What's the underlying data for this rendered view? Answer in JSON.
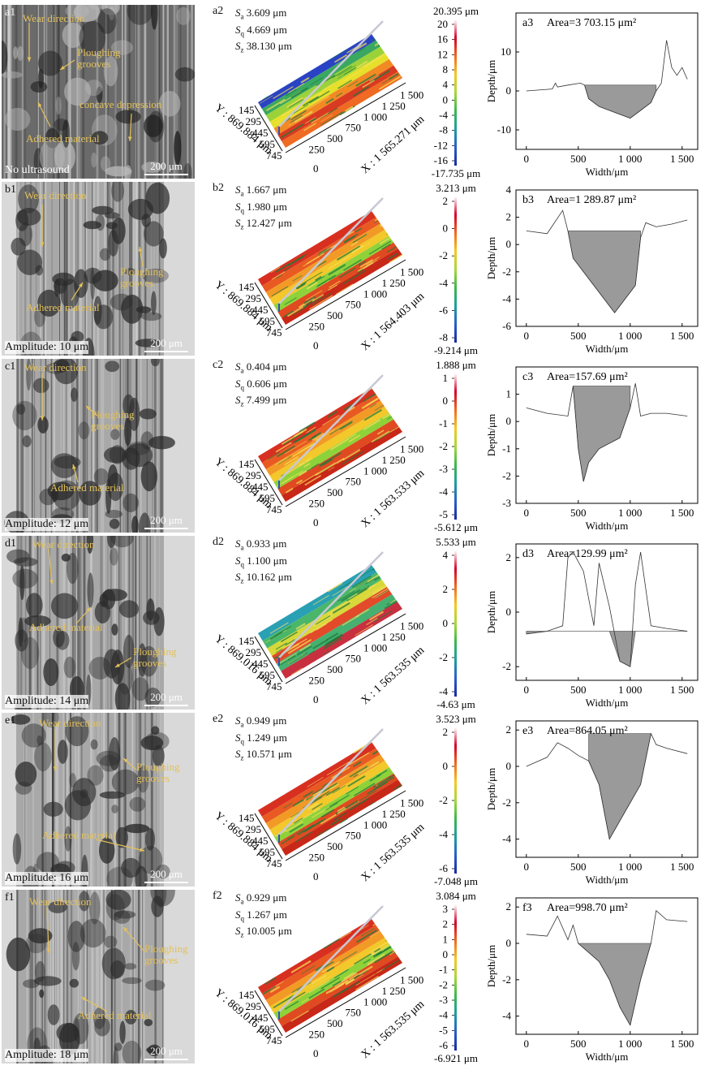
{
  "rows": [
    {
      "sem_label": "a1",
      "sem_caption": "No ultrasound",
      "scale": "200 μm",
      "annotations": {
        "wear": "Wear direction",
        "plough": "Ploughing\ngrooves",
        "adhered": "Adhered material",
        "concave": "concave depression"
      },
      "surf_label": "a2",
      "sa": "3.609 μm",
      "sq": "4.669 μm",
      "sz": "38.130 μm",
      "cmax": "20.395 μm",
      "cmin": "-17.735 μm",
      "cticks": [
        "20",
        "16",
        "12",
        "8",
        "4",
        "0",
        "-4",
        "-8",
        "-12",
        "-16"
      ],
      "xaxis": "X : 1 565.271 μm",
      "yaxis": "Y : 869.884 μm",
      "xticks": [
        "250",
        "500",
        "750",
        "1 000",
        "1 250",
        "1 500"
      ],
      "yticks": [
        "145",
        "295",
        "445",
        "595",
        "745"
      ],
      "prof_label": "a3",
      "area": "Area=3 703.15 μm²",
      "prof_yticks": [
        "10",
        "0",
        "-10"
      ],
      "prof_xticks": [
        "0",
        "500",
        "1 000",
        "1 500"
      ]
    },
    {
      "sem_label": "b1",
      "sem_caption": "Amplitude: 10 μm",
      "scale": "200 μm",
      "annotations": {
        "wear": "Wear direction",
        "plough": "Ploughing\ngrooves",
        "adhered": "Adhered material"
      },
      "surf_label": "b2",
      "sa": "1.667 μm",
      "sq": "1.980 μm",
      "sz": "12.427 μm",
      "cmax": "3.213 μm",
      "cmin": "-9.214 μm",
      "cticks": [
        "2",
        "0",
        "-2",
        "-4",
        "-6",
        "-8"
      ],
      "xaxis": "X : 1 564.403 μm",
      "yaxis": "Y : 869.884 μm",
      "xticks": [
        "250",
        "500",
        "750",
        "1 000",
        "1 250",
        "1 500"
      ],
      "yticks": [
        "145",
        "295",
        "445",
        "595",
        "745"
      ],
      "prof_label": "b3",
      "area": "Area=1 289.87 μm²",
      "prof_yticks": [
        "4",
        "2",
        "0",
        "-2",
        "-4",
        "-6"
      ],
      "prof_xticks": [
        "0",
        "500",
        "1 000",
        "1 500"
      ]
    },
    {
      "sem_label": "c1",
      "sem_caption": "Amplitude: 12 μm",
      "scale": "200 μm",
      "annotations": {
        "wear": "Wear direction",
        "plough": "Ploughing\ngrooves",
        "adhered": "Adhered material"
      },
      "surf_label": "c2",
      "sa": "0.404 μm",
      "sq": "0.606 μm",
      "sz": "7.499 μm",
      "cmax": "1.888 μm",
      "cmin": "-5.612 μm",
      "cticks": [
        "1",
        "0",
        "-1",
        "-2",
        "-3",
        "-4",
        "-5"
      ],
      "xaxis": "X : 1 563.533 μm",
      "yaxis": "Y : 869.884 μm",
      "xticks": [
        "250",
        "500",
        "750",
        "1 000",
        "1 250",
        "1 500"
      ],
      "yticks": [
        "145",
        "295",
        "445",
        "595",
        "745"
      ],
      "prof_label": "c3",
      "area": "Area=157.69 μm²",
      "prof_yticks": [
        "1",
        "0",
        "-1",
        "-2",
        "-3"
      ],
      "prof_xticks": [
        "0",
        "500",
        "1 000",
        "1 500"
      ]
    },
    {
      "sem_label": "d1",
      "sem_caption": "Amplitude: 14 μm",
      "scale": "200 μm",
      "annotations": {
        "wear": "Wear direction",
        "plough": "Ploughing\ngrooves",
        "adhered": "Adhered material"
      },
      "surf_label": "d2",
      "sa": "0.933 μm",
      "sq": "1.100 μm",
      "sz": "10.162 μm",
      "cmax": "5.533 μm",
      "cmin": "-4.63 μm",
      "cticks": [
        "4",
        "2",
        "0",
        "-2",
        "-4"
      ],
      "xaxis": "X : 1 563.535 μm",
      "yaxis": "Y : 869.016 μm",
      "xticks": [
        "250",
        "500",
        "750",
        "1 000",
        "1 250",
        "1 500"
      ],
      "yticks": [
        "145",
        "295",
        "445",
        "595",
        "745"
      ],
      "prof_label": "d3",
      "area": "Area=129.99  μm²",
      "prof_yticks": [
        "2",
        "0",
        "-2"
      ],
      "prof_xticks": [
        "0",
        "500",
        "1 000",
        "1 500"
      ]
    },
    {
      "sem_label": "e1",
      "sem_caption": "Amplitude: 16 μm",
      "scale": "200 μm",
      "annotations": {
        "wear": "Wear direction",
        "plough": "Ploughing\ngrooves",
        "adhered": "Adhered material"
      },
      "surf_label": "e2",
      "sa": "0.949 μm",
      "sq": "1.249 μm",
      "sz": "10.571 μm",
      "cmax": "3.523 μm",
      "cmin": "-7.048 μm",
      "cticks": [
        "2",
        "0",
        "-2",
        "-4",
        "-6"
      ],
      "xaxis": "X : 1 563.535 μm",
      "yaxis": "Y : 869.884 μm",
      "xticks": [
        "250",
        "500",
        "750",
        "1 000",
        "1 250",
        "1 500"
      ],
      "yticks": [
        "145",
        "295",
        "445",
        "595",
        "745"
      ],
      "prof_label": "e3",
      "area": "Area=864.05  μm²",
      "prof_yticks": [
        "2",
        "0",
        "-2",
        "-4"
      ],
      "prof_xticks": [
        "0",
        "500",
        "1 000",
        "1 500"
      ]
    },
    {
      "sem_label": "f1",
      "sem_caption": "Amplitude: 18 μm",
      "scale": "200 μm",
      "annotations": {
        "wear": "Wear direction",
        "plough": "Ploughing\ngrooves",
        "adhered": "Adhered material"
      },
      "surf_label": "f2",
      "sa": "0.929 μm",
      "sq": "1.267 μm",
      "sz": "10.005 μm",
      "cmax": "3.084 μm",
      "cmin": "-6.921 μm",
      "cticks": [
        "3",
        "2",
        "1",
        "0",
        "-1",
        "-2",
        "-3",
        "-4",
        "-5",
        "-6"
      ],
      "xaxis": "X : 1 563.535 μm",
      "yaxis": "Y : 869.016 μm",
      "xticks": [
        "250",
        "500",
        "750",
        "1 000",
        "1 250",
        "1 500"
      ],
      "yticks": [
        "145",
        "295",
        "445",
        "595",
        "745"
      ],
      "prof_label": "f3",
      "area": "Area=998.70  μm²",
      "prof_yticks": [
        "2",
        "0",
        "-2",
        "-4"
      ],
      "prof_xticks": [
        "0",
        "500",
        "1 000",
        "1 500"
      ]
    }
  ],
  "axes": {
    "depth": "Depth/μm",
    "width": "Width/μm"
  },
  "chart_data": [
    {
      "type": "line",
      "title": "a3",
      "xlabel": "Width/μm",
      "ylabel": "Depth/μm",
      "xlim": [
        -100,
        1650
      ],
      "ylim": [
        -15,
        20
      ],
      "series": [
        {
          "x": [
            0,
            250,
            280,
            300,
            400,
            520,
            560,
            600,
            700,
            800,
            900,
            1000,
            1100,
            1200,
            1250,
            1300,
            1350,
            1400,
            1450,
            1500,
            1550
          ],
          "y": [
            0,
            0.5,
            2,
            1,
            1.5,
            2,
            1.5,
            -2,
            -4,
            -5,
            -6,
            -7,
            -5,
            -3,
            0,
            2,
            13,
            6,
            4,
            6,
            3
          ]
        }
      ]
    },
    {
      "type": "line",
      "title": "b3",
      "xlabel": "Width/μm",
      "ylabel": "Depth/μm",
      "xlim": [
        -100,
        1650
      ],
      "ylim": [
        -6,
        4
      ],
      "series": [
        {
          "x": [
            0,
            200,
            350,
            400,
            450,
            550,
            650,
            750,
            850,
            950,
            1050,
            1100,
            1150,
            1250,
            1400,
            1550
          ],
          "y": [
            1,
            0.8,
            2.5,
            1,
            -1,
            -2,
            -3,
            -4,
            -5,
            -4,
            -3,
            0.5,
            1.6,
            1.3,
            1.5,
            1.8
          ]
        }
      ]
    },
    {
      "type": "line",
      "title": "c3",
      "xlabel": "Width/μm",
      "ylabel": "Depth/μm",
      "xlim": [
        -100,
        1650
      ],
      "ylim": [
        -3,
        2
      ],
      "series": [
        {
          "x": [
            0,
            200,
            400,
            450,
            500,
            550,
            600,
            700,
            800,
            900,
            1000,
            1050,
            1100,
            1200,
            1350,
            1550
          ],
          "y": [
            0.5,
            0.3,
            0.2,
            1.3,
            -1,
            -2.2,
            -1.5,
            -1,
            -0.8,
            -0.6,
            0.5,
            1.4,
            0.2,
            0.3,
            0.3,
            0.2
          ]
        }
      ]
    },
    {
      "type": "line",
      "title": "d3",
      "xlabel": "Width/μm",
      "ylabel": "Depth/μm",
      "xlim": [
        -100,
        1650
      ],
      "ylim": [
        -2.5,
        2.5
      ],
      "series": [
        {
          "x": [
            0,
            200,
            350,
            400,
            450,
            550,
            650,
            700,
            800,
            900,
            1000,
            1050,
            1100,
            1200,
            1350,
            1550
          ],
          "y": [
            -0.8,
            -0.7,
            -0.5,
            2,
            2.2,
            1.5,
            -0.5,
            1.8,
            0.2,
            -1.8,
            -2,
            1,
            2.2,
            -0.5,
            -0.6,
            -0.7
          ]
        }
      ]
    },
    {
      "type": "line",
      "title": "e3",
      "xlabel": "Width/μm",
      "ylabel": "Depth/μm",
      "xlim": [
        -100,
        1650
      ],
      "ylim": [
        -5,
        2.5
      ],
      "series": [
        {
          "x": [
            0,
            200,
            300,
            400,
            500,
            600,
            700,
            800,
            900,
            1000,
            1100,
            1200,
            1250,
            1350,
            1550
          ],
          "y": [
            0,
            0.5,
            1.3,
            1,
            0.6,
            0.3,
            -1,
            -4,
            -3,
            -2,
            -1,
            1.8,
            1.2,
            1,
            0.7
          ]
        }
      ]
    },
    {
      "type": "line",
      "title": "f3",
      "xlabel": "Width/μm",
      "ylabel": "Depth/μm",
      "xlim": [
        -100,
        1650
      ],
      "ylim": [
        -5,
        2.5
      ],
      "series": [
        {
          "x": [
            0,
            200,
            300,
            400,
            450,
            500,
            600,
            700,
            800,
            900,
            1000,
            1100,
            1200,
            1250,
            1350,
            1550
          ],
          "y": [
            0.5,
            0.4,
            1.5,
            0.2,
            1,
            0,
            -0.5,
            -1,
            -2,
            -3.5,
            -4.5,
            -2,
            0,
            1.8,
            1.3,
            1.2
          ]
        }
      ]
    }
  ]
}
